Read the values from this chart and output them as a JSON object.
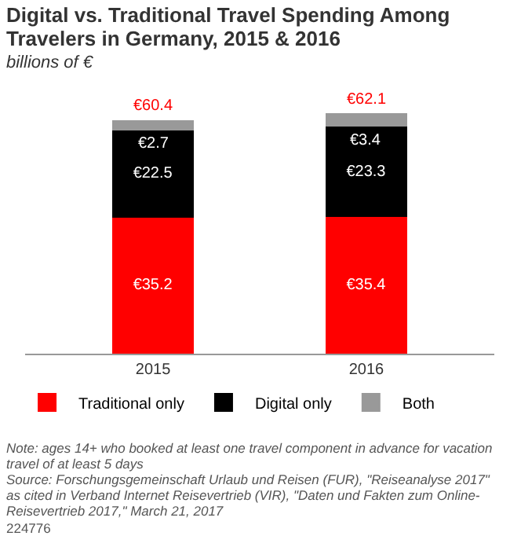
{
  "chart_data": {
    "type": "bar",
    "title": "Digital vs. Traditional Travel Spending Among Travelers in Germany, 2015 & 2016",
    "subtitle": "billions of €",
    "categories": [
      "2015",
      "2016"
    ],
    "stacked": true,
    "legend": "bottom",
    "series": [
      {
        "name": "Traditional only",
        "color": "#ff0000",
        "values": [
          35.2,
          35.4
        ],
        "value_labels": [
          "€35.2",
          "€35.4"
        ]
      },
      {
        "name": "Digital only",
        "color": "#000000",
        "values": [
          22.5,
          23.3
        ],
        "value_labels": [
          "€22.5",
          "€23.3"
        ]
      },
      {
        "name": "Both",
        "color": "#999999",
        "values": [
          2.7,
          3.4
        ],
        "value_labels": [
          "€2.7",
          "€3.4"
        ]
      }
    ],
    "totals": [
      "€60.4",
      "€62.1"
    ],
    "annotations": [
      "Note: ages 14+ who booked at least one travel component in advance for vacation travel of at least 5 days",
      "Source: Forschungsgemeinschaft Urlaub und Reisen (FUR), \"Reiseanalyse 2017\" as cited in Verband Internet Reisevertrieb (VIR), \"Daten und Fakten zum Online-Reisevertrieb 2017,\" March 21, 2017",
      "224776"
    ]
  }
}
